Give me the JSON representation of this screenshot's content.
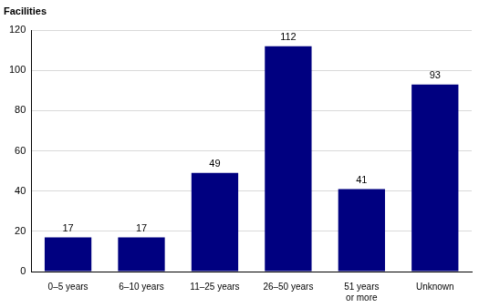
{
  "chart_data": {
    "type": "bar",
    "y_label": "Facilities",
    "categories": [
      "0–5 years",
      "6–10 years",
      "11–25 years",
      "26–50 years",
      "51 years or more",
      "Unknown"
    ],
    "values": [
      17,
      17,
      49,
      112,
      41,
      93
    ],
    "color": "#000080",
    "ylim": [
      0,
      120
    ],
    "yticks": [
      0,
      20,
      40,
      60,
      80,
      100,
      120
    ],
    "grid": true,
    "data_labels": true
  }
}
